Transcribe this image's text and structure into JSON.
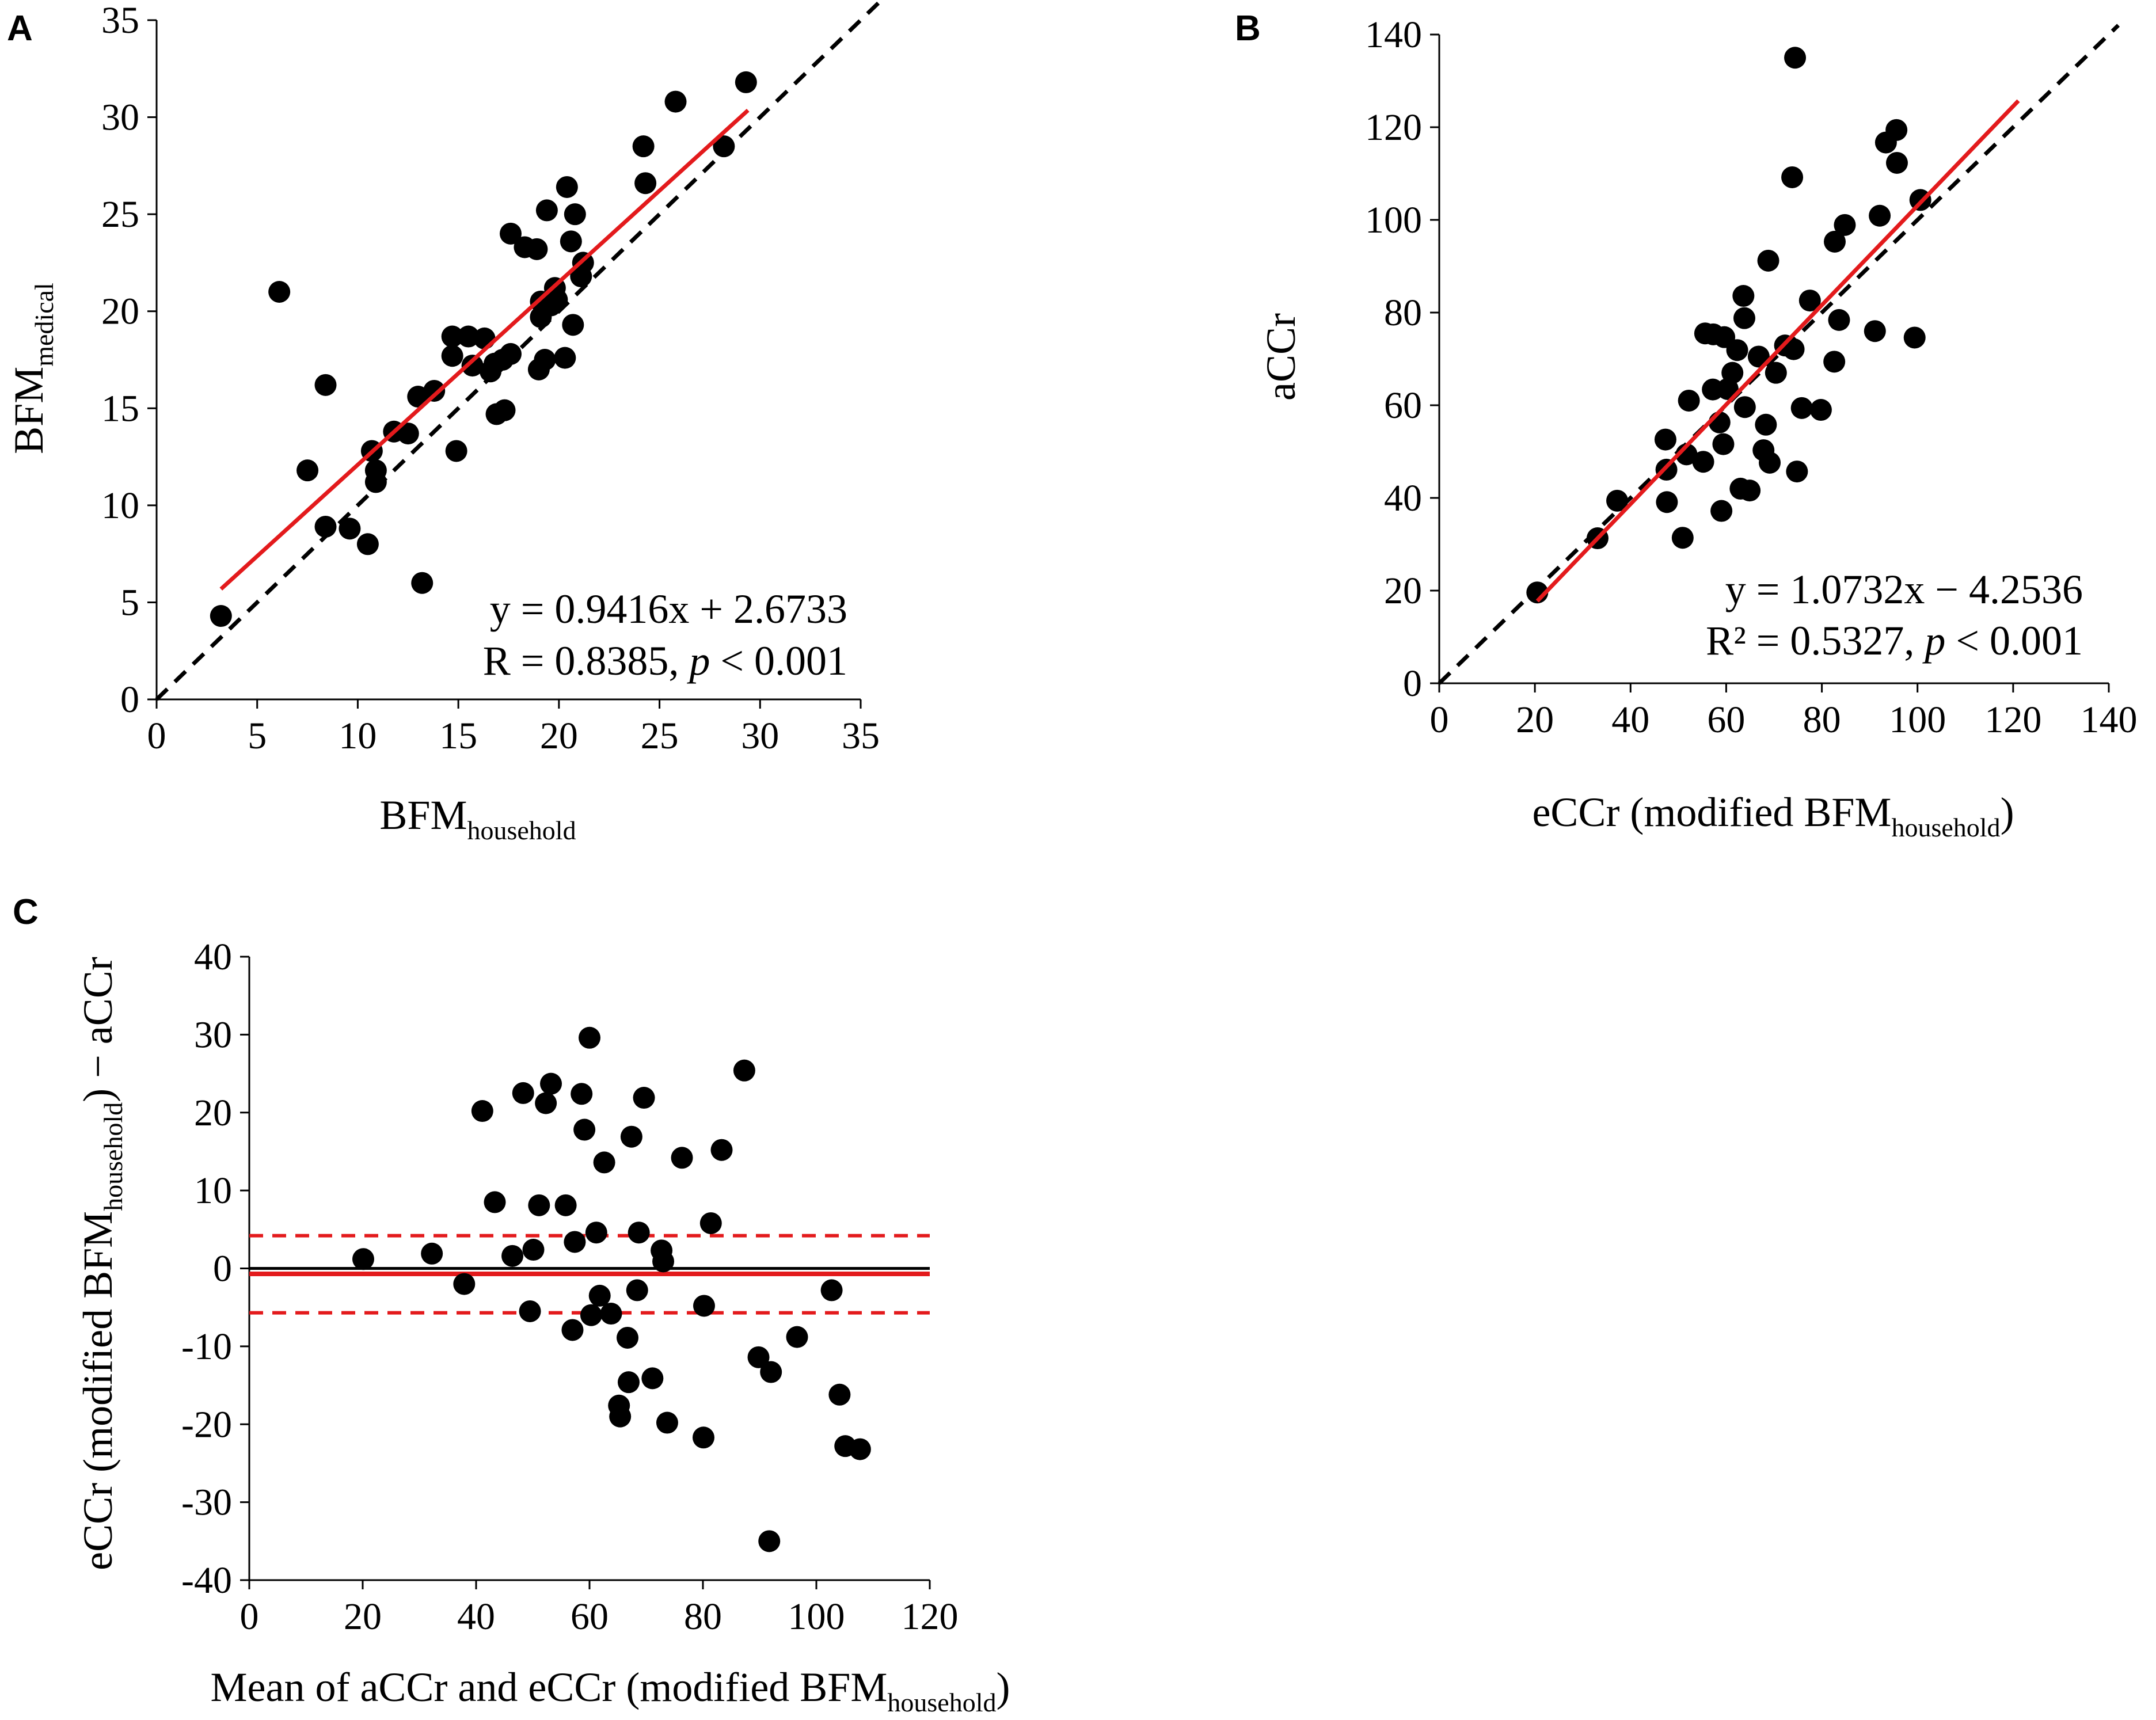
{
  "chart_data": [
    {
      "panel": "A",
      "type": "scatter",
      "xlabel": "BFM",
      "xlabel_sub": "household",
      "ylabel": "BFM",
      "ylabel_sub": "medical",
      "xlim": [
        0,
        35
      ],
      "ylim": [
        0,
        35
      ],
      "xticks": [
        "0",
        "5",
        "10",
        "15",
        "20",
        "25",
        "30",
        "35"
      ],
      "yticks": [
        "0",
        "5",
        "10",
        "15",
        "20",
        "25",
        "30",
        "35"
      ],
      "equation": "y = 0.9416x + 2.6733",
      "stat_prefix": "R = 0.8385, ",
      "stat_p": "p",
      "stat_suffix": " < 0.001",
      "regression": {
        "slope": 0.9416,
        "intercept": 2.6733,
        "x_from": 3.2,
        "x_to": 29.4,
        "color": "#e31a1c"
      },
      "identity_line": {
        "from": 0,
        "to": 36,
        "color": "#000000"
      },
      "points": [
        [
          3.2,
          4.3
        ],
        [
          6.1,
          21.0
        ],
        [
          7.5,
          11.8
        ],
        [
          8.4,
          8.9
        ],
        [
          8.4,
          16.2
        ],
        [
          9.6,
          8.8
        ],
        [
          10.5,
          8.0
        ],
        [
          10.7,
          12.8
        ],
        [
          10.9,
          11.2
        ],
        [
          10.9,
          11.8
        ],
        [
          11.8,
          13.8
        ],
        [
          12.5,
          13.7
        ],
        [
          13.0,
          15.6
        ],
        [
          13.2,
          6.0
        ],
        [
          13.8,
          15.9
        ],
        [
          14.7,
          18.7
        ],
        [
          14.7,
          17.7
        ],
        [
          14.9,
          12.8
        ],
        [
          15.5,
          18.7
        ],
        [
          15.7,
          17.2
        ],
        [
          16.3,
          18.6
        ],
        [
          16.6,
          16.9
        ],
        [
          16.8,
          17.3
        ],
        [
          16.9,
          14.7
        ],
        [
          17.2,
          17.5
        ],
        [
          17.3,
          14.9
        ],
        [
          17.6,
          17.8
        ],
        [
          17.6,
          24.0
        ],
        [
          18.3,
          23.3
        ],
        [
          18.9,
          23.2
        ],
        [
          19.0,
          17.0
        ],
        [
          19.1,
          19.7
        ],
        [
          19.1,
          20.5
        ],
        [
          19.3,
          17.5
        ],
        [
          19.4,
          25.2
        ],
        [
          19.6,
          20.3
        ],
        [
          19.8,
          21.2
        ],
        [
          19.9,
          20.6
        ],
        [
          20.3,
          17.6
        ],
        [
          20.4,
          26.4
        ],
        [
          20.6,
          23.6
        ],
        [
          20.7,
          19.3
        ],
        [
          20.8,
          25.0
        ],
        [
          21.1,
          21.8
        ],
        [
          21.2,
          22.5
        ],
        [
          24.2,
          28.5
        ],
        [
          24.3,
          26.6
        ],
        [
          25.8,
          30.8
        ],
        [
          28.2,
          28.5
        ],
        [
          29.3,
          31.8
        ]
      ]
    },
    {
      "panel": "B",
      "type": "scatter",
      "xlabel": "eCCr (modified BFM",
      "xlabel_sub": "household",
      "xlabel_end": ")",
      "ylabel": "aCCr",
      "xlim": [
        0,
        140
      ],
      "ylim": [
        0,
        140
      ],
      "xticks": [
        "0",
        "20",
        "40",
        "60",
        "80",
        "100",
        "120",
        "140"
      ],
      "yticks": [
        "0",
        "20",
        "40",
        "60",
        "80",
        "100",
        "120",
        "140"
      ],
      "equation": "y = 1.0732x − 4.2536",
      "stat_prefix": "R² = 0.5327, ",
      "stat_p": "p",
      "stat_suffix": " < 0.001",
      "regression": {
        "slope": 1.0732,
        "intercept": -4.2536,
        "x_from": 20.5,
        "x_to": 121.1,
        "color": "#e31a1c"
      },
      "identity_line": {
        "from": 0,
        "to": 142,
        "color": "#000000"
      },
      "points": [
        [
          20.5,
          19.6
        ],
        [
          33.1,
          31.3
        ],
        [
          37.2,
          39.4
        ],
        [
          47.3,
          52.6
        ],
        [
          47.5,
          46.1
        ],
        [
          47.6,
          39.1
        ],
        [
          50.9,
          31.4
        ],
        [
          51.7,
          49.4
        ],
        [
          52.2,
          61.0
        ],
        [
          55.2,
          47.8
        ],
        [
          55.6,
          75.5
        ],
        [
          57.2,
          63.4
        ],
        [
          57.3,
          75.3
        ],
        [
          58.6,
          56.3
        ],
        [
          59.0,
          37.2
        ],
        [
          59.4,
          51.6
        ],
        [
          59.6,
          74.7
        ],
        [
          60.3,
          63.5
        ],
        [
          61.3,
          67.0
        ],
        [
          62.3,
          71.9
        ],
        [
          63.0,
          42.0
        ],
        [
          63.6,
          83.6
        ],
        [
          63.8,
          78.8
        ],
        [
          63.9,
          59.6
        ],
        [
          64.9,
          41.6
        ],
        [
          66.8,
          70.5
        ],
        [
          67.8,
          50.3
        ],
        [
          68.3,
          55.8
        ],
        [
          68.8,
          91.2
        ],
        [
          69.1,
          47.6
        ],
        [
          70.4,
          67.0
        ],
        [
          72.3,
          72.9
        ],
        [
          73.8,
          109.2
        ],
        [
          74.1,
          72.1
        ],
        [
          74.4,
          135.0
        ],
        [
          74.8,
          45.7
        ],
        [
          75.8,
          59.4
        ],
        [
          77.5,
          82.6
        ],
        [
          79.8,
          59.0
        ],
        [
          82.6,
          69.4
        ],
        [
          82.7,
          95.3
        ],
        [
          83.6,
          78.4
        ],
        [
          84.8,
          98.9
        ],
        [
          91.1,
          76.0
        ],
        [
          92.1,
          100.9
        ],
        [
          93.4,
          116.7
        ],
        [
          95.6,
          119.4
        ],
        [
          95.7,
          112.3
        ],
        [
          99.4,
          74.6
        ],
        [
          100.6,
          104.3
        ]
      ]
    },
    {
      "panel": "C",
      "type": "scatter",
      "xlabel": "Mean of aCCr and eCCr (modified BFM",
      "xlabel_sub": "household",
      "xlabel_end": ")",
      "ylabel": "eCCr (modified BFM",
      "ylabel_sub": "household",
      "ylabel_end": ") − aCCr",
      "xlim": [
        0,
        120
      ],
      "ylim": [
        -40,
        40
      ],
      "xticks": [
        "0",
        "20",
        "40",
        "60",
        "80",
        "100",
        "120"
      ],
      "yticks": [
        "-40",
        "-30",
        "-20",
        "-10",
        "0",
        "10",
        "20",
        "30",
        "40"
      ],
      "zero_line": 0,
      "mean_diff": -0.7,
      "upper_limit": 4.2,
      "lower_limit": -5.7,
      "line_color": "#e31a1c",
      "points": [
        [
          20.1,
          1.2
        ],
        [
          32.2,
          1.9
        ],
        [
          37.9,
          -2.0
        ],
        [
          41.1,
          20.2
        ],
        [
          43.3,
          8.5
        ],
        [
          46.4,
          1.6
        ],
        [
          48.3,
          22.5
        ],
        [
          49.5,
          -5.5
        ],
        [
          50.1,
          2.4
        ],
        [
          51.1,
          8.1
        ],
        [
          52.3,
          21.2
        ],
        [
          53.2,
          23.7
        ],
        [
          55.8,
          8.1
        ],
        [
          57.0,
          -7.9
        ],
        [
          57.4,
          3.4
        ],
        [
          58.6,
          22.4
        ],
        [
          59.1,
          17.8
        ],
        [
          60.0,
          29.6
        ],
        [
          60.3,
          -6.0
        ],
        [
          61.2,
          4.6
        ],
        [
          61.8,
          -3.5
        ],
        [
          62.6,
          13.6
        ],
        [
          63.8,
          -5.8
        ],
        [
          65.2,
          -17.6
        ],
        [
          65.4,
          -19.0
        ],
        [
          66.7,
          -8.9
        ],
        [
          66.9,
          -14.6
        ],
        [
          67.4,
          16.9
        ],
        [
          68.4,
          -2.8
        ],
        [
          68.7,
          4.6
        ],
        [
          69.6,
          21.9
        ],
        [
          71.1,
          -14.1
        ],
        [
          72.7,
          2.3
        ],
        [
          73.0,
          0.9
        ],
        [
          73.7,
          -19.8
        ],
        [
          76.3,
          14.2
        ],
        [
          80.1,
          -21.7
        ],
        [
          80.2,
          -4.8
        ],
        [
          81.4,
          5.8
        ],
        [
          83.3,
          15.2
        ],
        [
          87.3,
          25.4
        ],
        [
          89.8,
          -11.4
        ],
        [
          92.0,
          -13.3
        ],
        [
          91.7,
          -35.0
        ],
        [
          96.6,
          -8.8
        ],
        [
          102.7,
          -2.8
        ],
        [
          104.1,
          -16.2
        ],
        [
          105.1,
          -22.8
        ],
        [
          107.7,
          -23.2
        ]
      ]
    }
  ]
}
